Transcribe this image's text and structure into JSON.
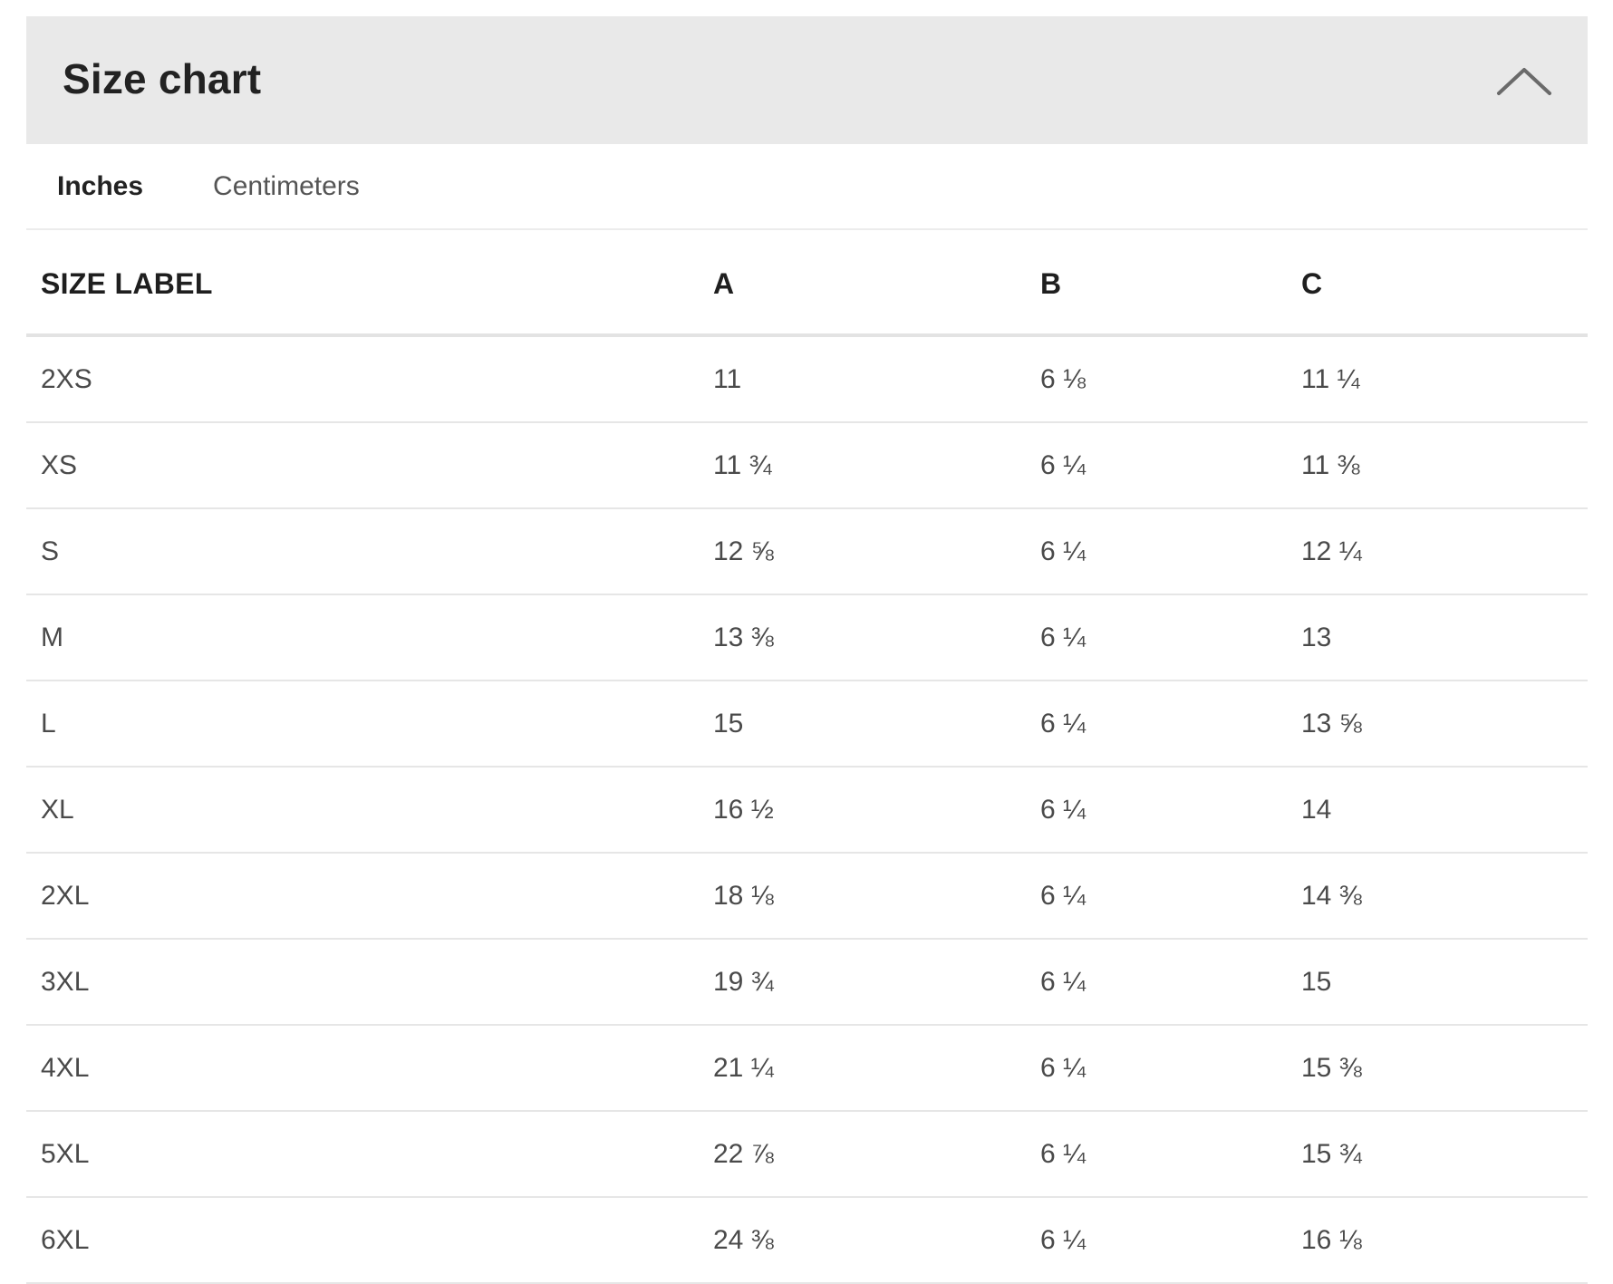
{
  "header": {
    "title": "Size chart",
    "collapse_icon": "chevron-up-icon"
  },
  "tabs": [
    {
      "label": "Inches",
      "active": true
    },
    {
      "label": "Centimeters",
      "active": false
    }
  ],
  "table": {
    "columns": [
      "SIZE LABEL",
      "A",
      "B",
      "C"
    ],
    "rows": [
      [
        "2XS",
        "11",
        "6 ⅛",
        "11 ¼"
      ],
      [
        "XS",
        "11 ¾",
        "6 ¼",
        "11 ⅜"
      ],
      [
        "S",
        "12 ⅝",
        "6 ¼",
        "12 ¼"
      ],
      [
        "M",
        "13 ⅜",
        "6 ¼",
        "13"
      ],
      [
        "L",
        "15",
        "6 ¼",
        "13 ⅝"
      ],
      [
        "XL",
        "16 ½",
        "6 ¼",
        "14"
      ],
      [
        "2XL",
        "18 ⅛",
        "6 ¼",
        "14 ⅜"
      ],
      [
        "3XL",
        "19 ¾",
        "6 ¼",
        "15"
      ],
      [
        "4XL",
        "21 ¼",
        "6 ¼",
        "15 ⅜"
      ],
      [
        "5XL",
        "22 ⅞",
        "6 ¼",
        "15 ¾"
      ],
      [
        "6XL",
        "24 ⅜",
        "6 ¼",
        "16 ⅛"
      ]
    ]
  },
  "colors": {
    "header_bg": "#e9e9e9",
    "text_primary": "#222222",
    "text_secondary": "#4a4a4a",
    "divider": "#e6e6e6"
  }
}
